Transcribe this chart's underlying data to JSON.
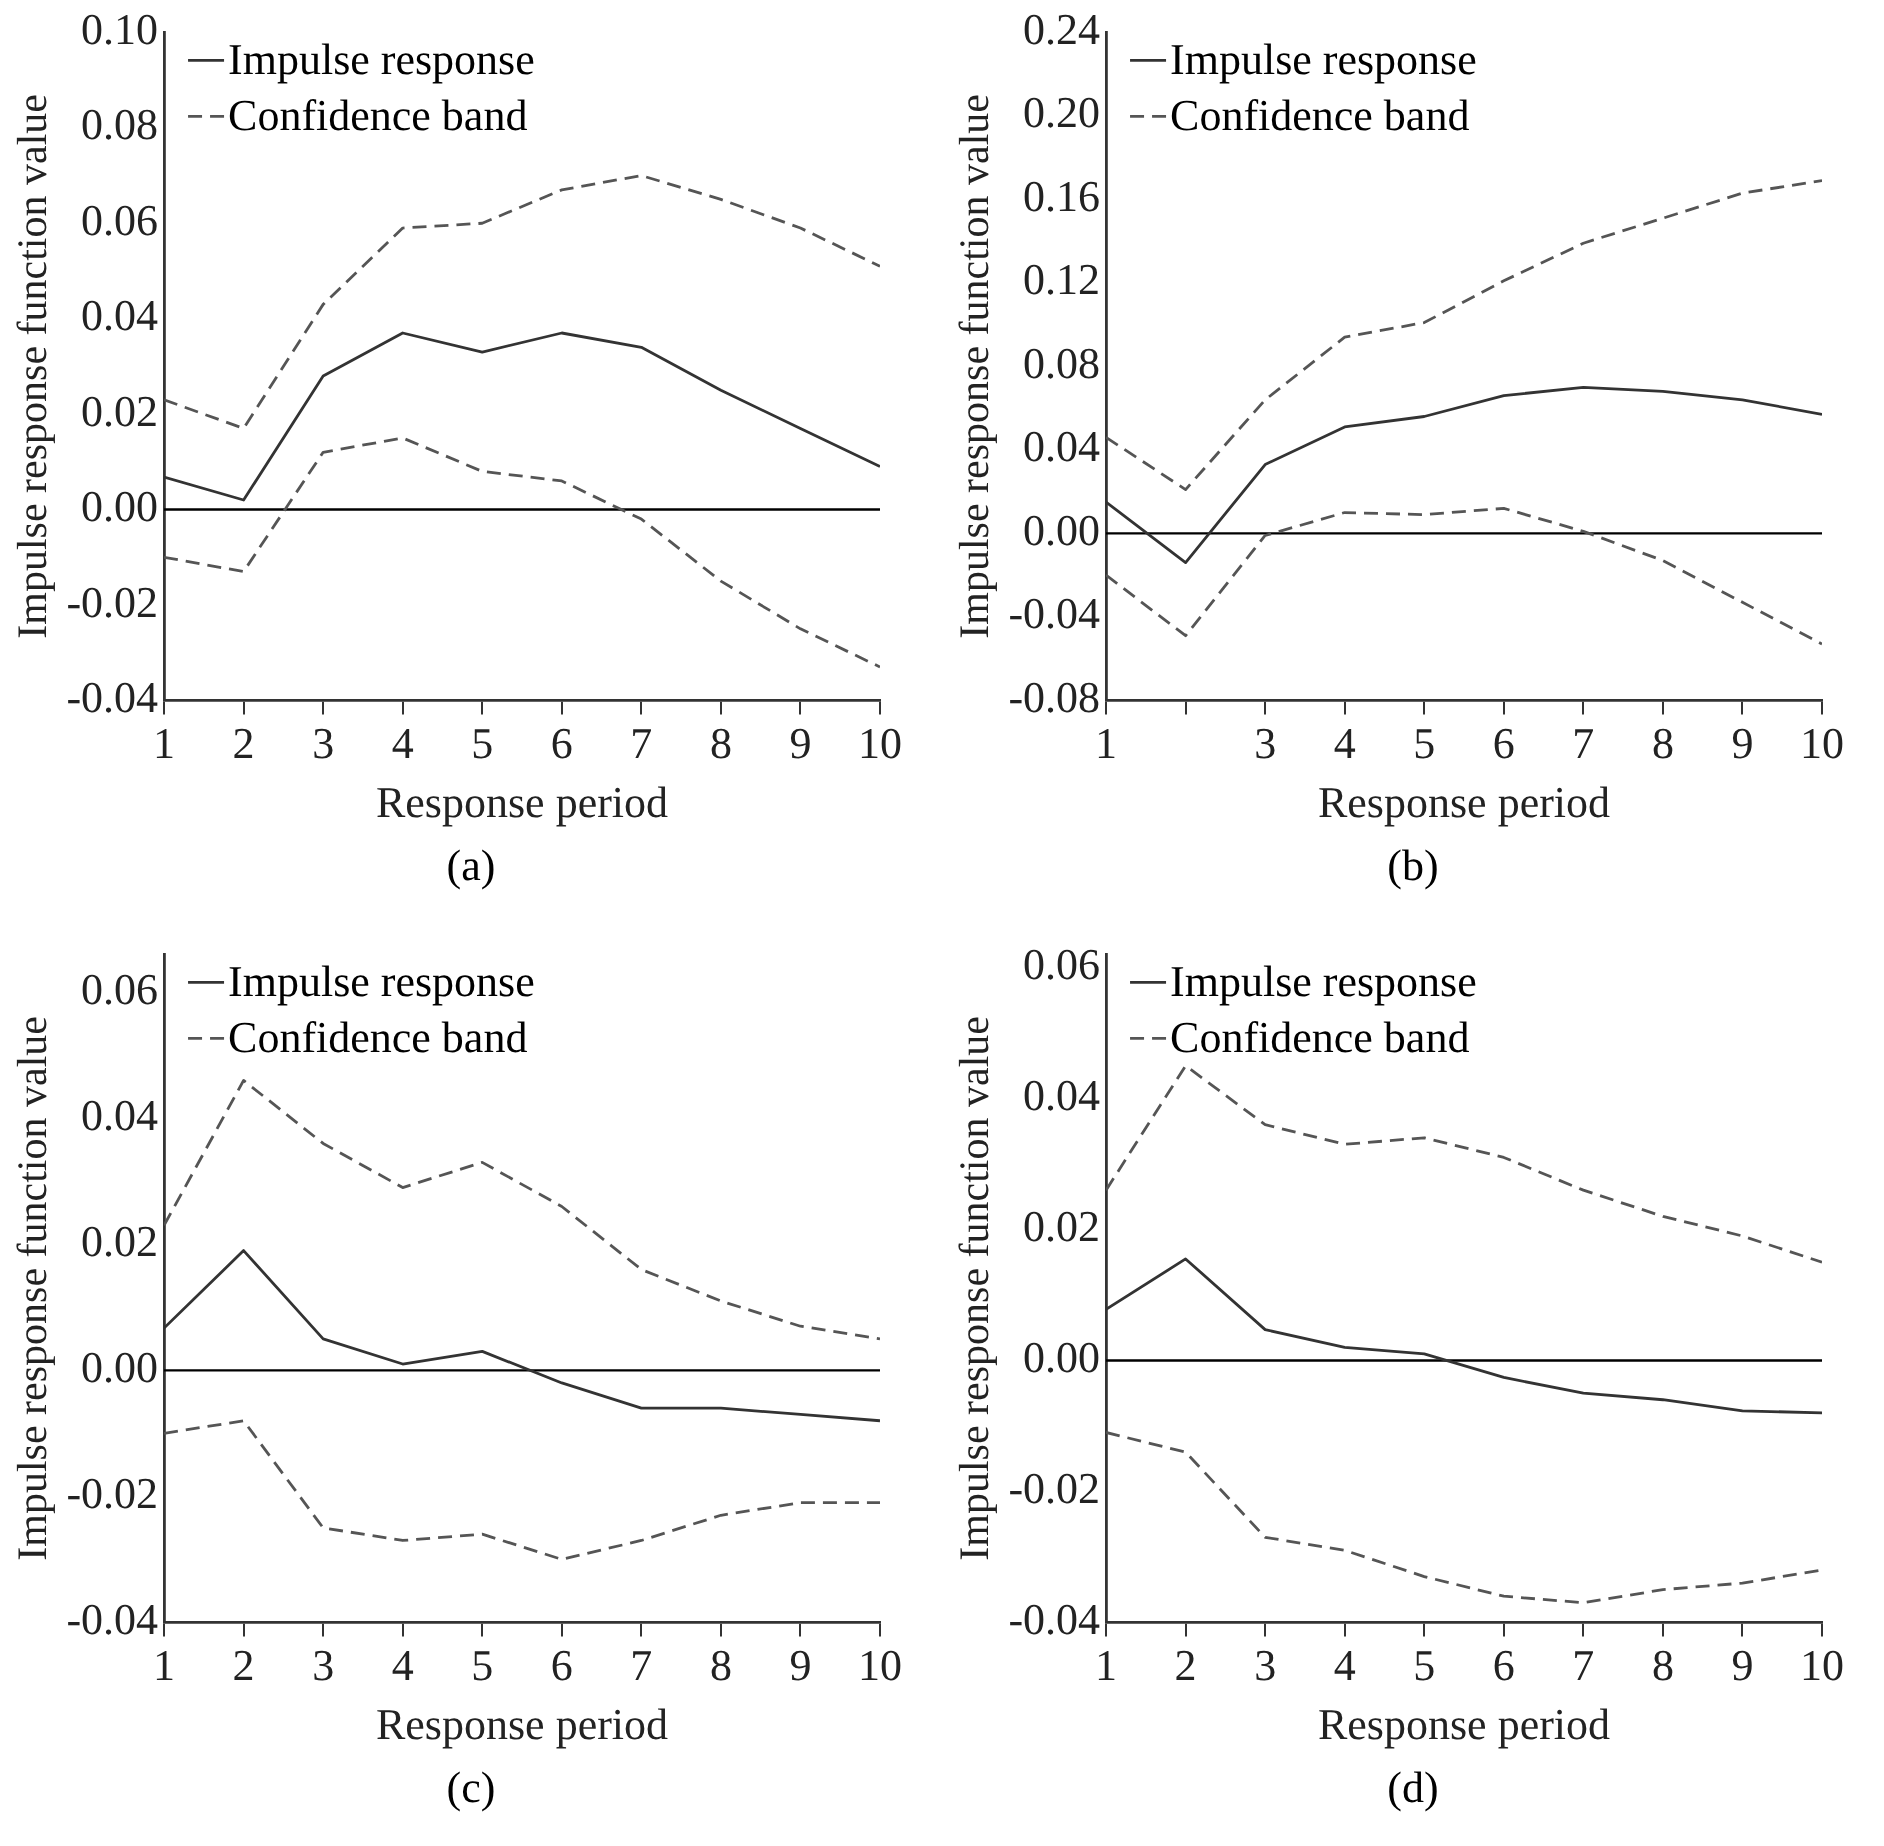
{
  "chart_data": [
    {
      "type": "line",
      "xlabel": "Response period",
      "ylabel": "Impulse response function value",
      "annotations": [
        "(a)"
      ],
      "x": [
        1,
        2,
        3,
        4,
        5,
        6,
        7,
        8,
        9,
        10
      ],
      "xlim": [
        1,
        10
      ],
      "xticks": [
        1,
        2,
        3,
        4,
        5,
        6,
        7,
        8,
        9,
        10
      ],
      "ylim": [
        -0.04,
        0.1
      ],
      "yticks": [
        -0.04,
        -0.02,
        {
          "value": 0,
          "label": "0.00"
        },
        0.02,
        0.04,
        0.06,
        0.08,
        {
          "value": 0.1,
          "label": "0.10"
        }
      ],
      "grid": false,
      "legend": "top left",
      "marker": "none",
      "ref_lines": [
        {
          "axis": "y",
          "value": 0,
          "color": "#000000",
          "line_style": "solid"
        }
      ],
      "series": [
        {
          "name": "Impulse response",
          "color": "#333333",
          "line_style": "solid",
          "values": [
            0.0068,
            0.002,
            0.028,
            0.037,
            0.033,
            0.037,
            0.034,
            0.025,
            0.017,
            0.009
          ]
        },
        {
          "name": "Confidence band",
          "color": "#555555",
          "line_style": "dashed",
          "values": [
            0.023,
            0.017,
            0.043,
            0.059,
            0.06,
            0.067,
            0.07,
            0.065,
            0.059,
            0.051
          ]
        },
        {
          "color": "#555555",
          "line_style": "dashed",
          "values": [
            -0.01,
            -0.013,
            0.012,
            0.015,
            0.008,
            0.006,
            -0.002,
            -0.015,
            -0.025,
            -0.033
          ]
        }
      ]
    },
    {
      "type": "line",
      "xlabel": "Response period",
      "ylabel": "Impulse response function value",
      "annotations": [
        "(b)"
      ],
      "x": [
        1,
        2,
        3,
        4,
        5,
        6,
        7,
        8,
        9,
        10
      ],
      "xlim": [
        1,
        10
      ],
      "xticks": [
        1,
        {
          "value": 2,
          "label": null
        },
        3,
        4,
        5,
        6,
        7,
        8,
        9,
        10
      ],
      "ylim": [
        -0.08,
        0.24
      ],
      "yticks": [
        -0.08,
        -0.04,
        {
          "value": 0,
          "label": "0.00"
        },
        0.04,
        0.08,
        0.12,
        0.16,
        {
          "value": 0.2,
          "label": "0.20"
        },
        0.24
      ],
      "grid": false,
      "legend": "top left",
      "marker": "none",
      "ref_lines": [
        {
          "axis": "y",
          "value": 0,
          "color": "#000000",
          "line_style": "solid"
        }
      ],
      "series": [
        {
          "name": "Impulse response",
          "color": "#333333",
          "line_style": "solid",
          "values": [
            0.015,
            -0.014,
            0.033,
            0.051,
            0.056,
            0.066,
            0.07,
            0.068,
            0.064,
            0.057
          ]
        },
        {
          "name": "Confidence band",
          "color": "#555555",
          "line_style": "dashed",
          "values": [
            0.046,
            0.021,
            0.064,
            0.094,
            0.101,
            0.121,
            0.139,
            0.151,
            0.163,
            0.169
          ]
        },
        {
          "color": "#555555",
          "line_style": "dashed",
          "values": [
            -0.02,
            -0.049,
            -0.001,
            0.01,
            0.009,
            0.012,
            0.001,
            -0.013,
            -0.033,
            -0.053
          ]
        }
      ]
    },
    {
      "type": "line",
      "xlabel": "Response period",
      "ylabel": "Impulse response function value",
      "annotations": [
        "(c)"
      ],
      "x": [
        1,
        2,
        3,
        4,
        5,
        6,
        7,
        8,
        9,
        10
      ],
      "xlim": [
        1,
        10
      ],
      "xticks": [
        1,
        2,
        3,
        4,
        5,
        6,
        7,
        8,
        9,
        10
      ],
      "ylim": [
        -0.04,
        0.066
      ],
      "yticks": [
        -0.04,
        -0.02,
        {
          "value": 0,
          "label": "0.00"
        },
        0.02,
        0.04,
        0.06
      ],
      "grid": false,
      "legend": "top left",
      "marker": "none",
      "ref_lines": [
        {
          "axis": "y",
          "value": 0,
          "color": "#000000",
          "line_style": "solid"
        }
      ],
      "series": [
        {
          "name": "Impulse response",
          "color": "#333333",
          "line_style": "solid",
          "values": [
            0.0067,
            0.019,
            0.005,
            0.001,
            0.003,
            -0.002,
            -0.006,
            -0.006,
            -0.007,
            -0.008
          ]
        },
        {
          "name": "Confidence band",
          "color": "#555555",
          "line_style": "dashed",
          "values": [
            0.023,
            0.046,
            0.036,
            0.029,
            0.033,
            0.026,
            0.016,
            0.011,
            0.007,
            0.005
          ]
        },
        {
          "color": "#555555",
          "line_style": "dashed",
          "values": [
            -0.01,
            -0.008,
            -0.025,
            -0.027,
            -0.026,
            -0.03,
            -0.027,
            -0.023,
            -0.021,
            -0.021
          ]
        }
      ]
    },
    {
      "type": "line",
      "xlabel": "Response period",
      "ylabel": "Impulse response function value",
      "annotations": [
        "(d)"
      ],
      "x": [
        1,
        2,
        3,
        4,
        5,
        6,
        7,
        8,
        9,
        10
      ],
      "xlim": [
        1,
        10
      ],
      "xticks": [
        1,
        2,
        3,
        4,
        5,
        6,
        7,
        8,
        9,
        10
      ],
      "ylim": [
        -0.04,
        0.062
      ],
      "yticks": [
        -0.04,
        -0.02,
        {
          "value": 0,
          "label": "0.00"
        },
        0.02,
        0.04,
        0.06
      ],
      "grid": false,
      "legend": "top left",
      "marker": "none",
      "ref_lines": [
        {
          "axis": "y",
          "value": 0,
          "color": "#000000",
          "line_style": "solid"
        }
      ],
      "series": [
        {
          "name": "Impulse response",
          "color": "#333333",
          "line_style": "solid",
          "values": [
            0.0078,
            0.0155,
            0.0047,
            0.002,
            0.001,
            -0.0026,
            -0.005,
            -0.006,
            -0.0077,
            -0.008
          ]
        },
        {
          "name": "Confidence band",
          "color": "#555555",
          "line_style": "dashed",
          "values": [
            0.026,
            0.045,
            0.036,
            0.033,
            0.034,
            0.031,
            0.026,
            0.022,
            0.019,
            0.015
          ]
        },
        {
          "color": "#555555",
          "line_style": "dashed",
          "values": [
            -0.011,
            -0.014,
            -0.027,
            -0.029,
            -0.033,
            -0.036,
            -0.037,
            -0.035,
            -0.034,
            -0.032
          ]
        }
      ]
    }
  ]
}
